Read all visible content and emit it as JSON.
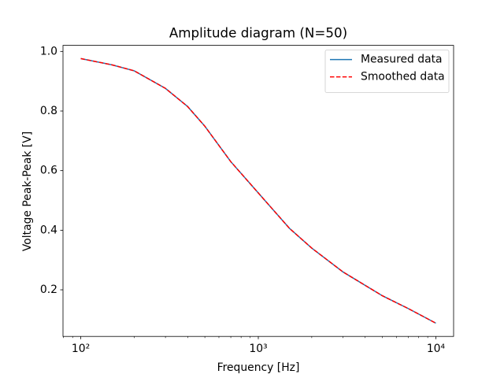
{
  "chart_data": {
    "type": "line",
    "title": "Amplitude diagram (N=50)",
    "x_label": "Frequency [Hz]",
    "y_label": "Voltage Peak-Peak [V]",
    "x_scale": "log",
    "x": [
      100,
      150,
      200,
      300,
      400,
      500,
      700,
      1000,
      1500,
      2000,
      3000,
      5000,
      7000,
      10000
    ],
    "series": [
      {
        "name": "Measured data",
        "color": "#1f77b4",
        "dash": "solid",
        "values": [
          0.976,
          0.955,
          0.935,
          0.876,
          0.815,
          0.749,
          0.63,
          0.525,
          0.406,
          0.34,
          0.26,
          0.18,
          0.137,
          0.088
        ]
      },
      {
        "name": "Smoothed data",
        "color": "#ff0000",
        "dash": "dashed",
        "values": [
          0.976,
          0.955,
          0.935,
          0.876,
          0.815,
          0.749,
          0.63,
          0.525,
          0.406,
          0.34,
          0.26,
          0.18,
          0.137,
          0.088
        ]
      }
    ],
    "xlim": [
      79.43,
      12589
    ],
    "ylim": [
      0.0436,
      1.0204
    ],
    "xticks": [
      {
        "value": 100,
        "label": "10²"
      },
      {
        "value": 1000,
        "label": "10³"
      },
      {
        "value": 10000,
        "label": "10⁴"
      }
    ],
    "xminorticks": [
      80,
      90,
      200,
      300,
      400,
      500,
      600,
      700,
      800,
      900,
      2000,
      3000,
      4000,
      5000,
      6000,
      7000,
      8000,
      9000
    ],
    "yticks": [
      0.2,
      0.4,
      0.6,
      0.8,
      {
        "value": 1,
        "label": "1.0"
      }
    ],
    "legend": "upper right",
    "grid": false
  }
}
